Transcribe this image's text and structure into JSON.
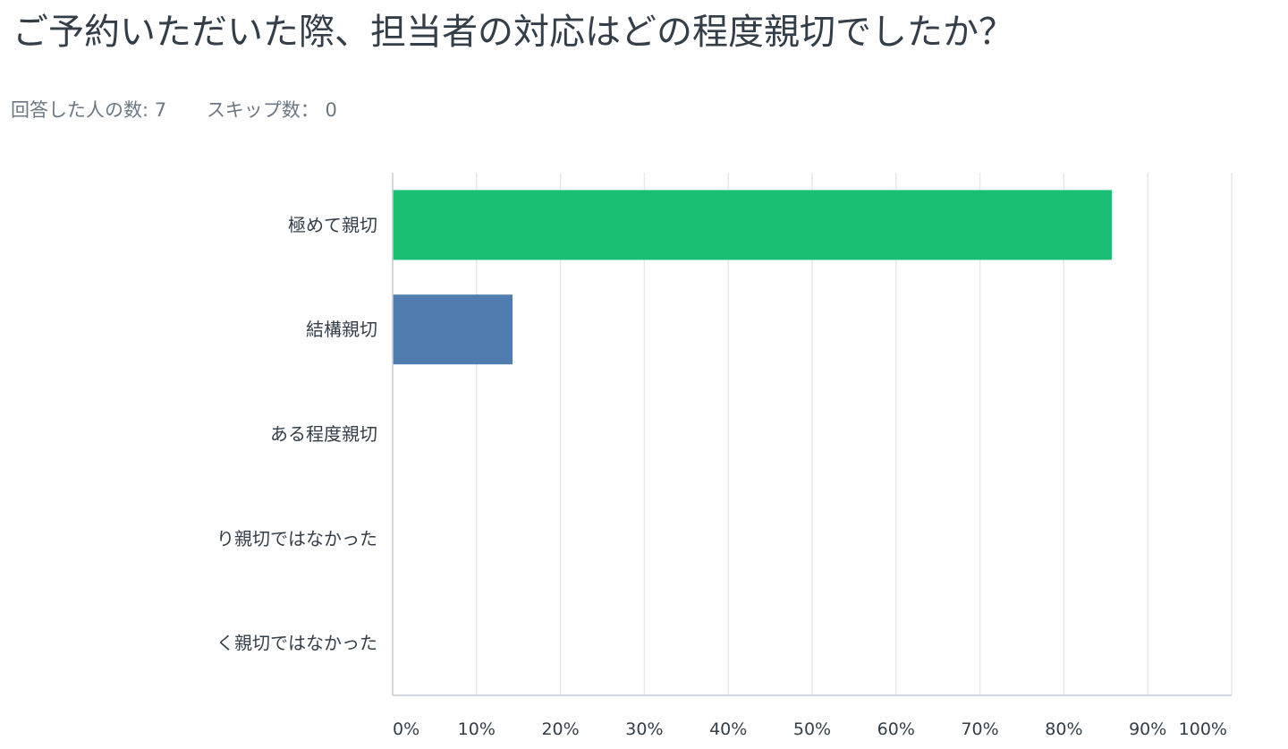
{
  "question": {
    "title": "ご予約いただいた際、担当者の対応はどの程度親切でしたか？"
  },
  "stats": {
    "answered_label": "回答した人の数: 7",
    "skipped_label": "スキップ数： 0"
  },
  "colors": {
    "text": "#333e48",
    "muted": "#6b7883",
    "grid": "#e6e9ec",
    "axis": "#c5cacf",
    "bar_green": "#1bbd73",
    "bar_blue": "#507cb0"
  },
  "chart_data": {
    "type": "bar",
    "orientation": "horizontal",
    "categories": [
      "極めて親切",
      "結構親切",
      "ある程度親切",
      "り親切ではなかった",
      "く親切ではなかった"
    ],
    "values": [
      85.71,
      14.29,
      0,
      0,
      0
    ],
    "bar_colors": [
      "#1bbd73",
      "#507cb0",
      "#1bbd73",
      "#1bbd73",
      "#1bbd73"
    ],
    "xlim": [
      0,
      100
    ],
    "xticks": [
      "0%",
      "10%",
      "20%",
      "30%",
      "40%",
      "50%",
      "60%",
      "70%",
      "80%",
      "90%",
      "100%"
    ],
    "grid": true
  }
}
